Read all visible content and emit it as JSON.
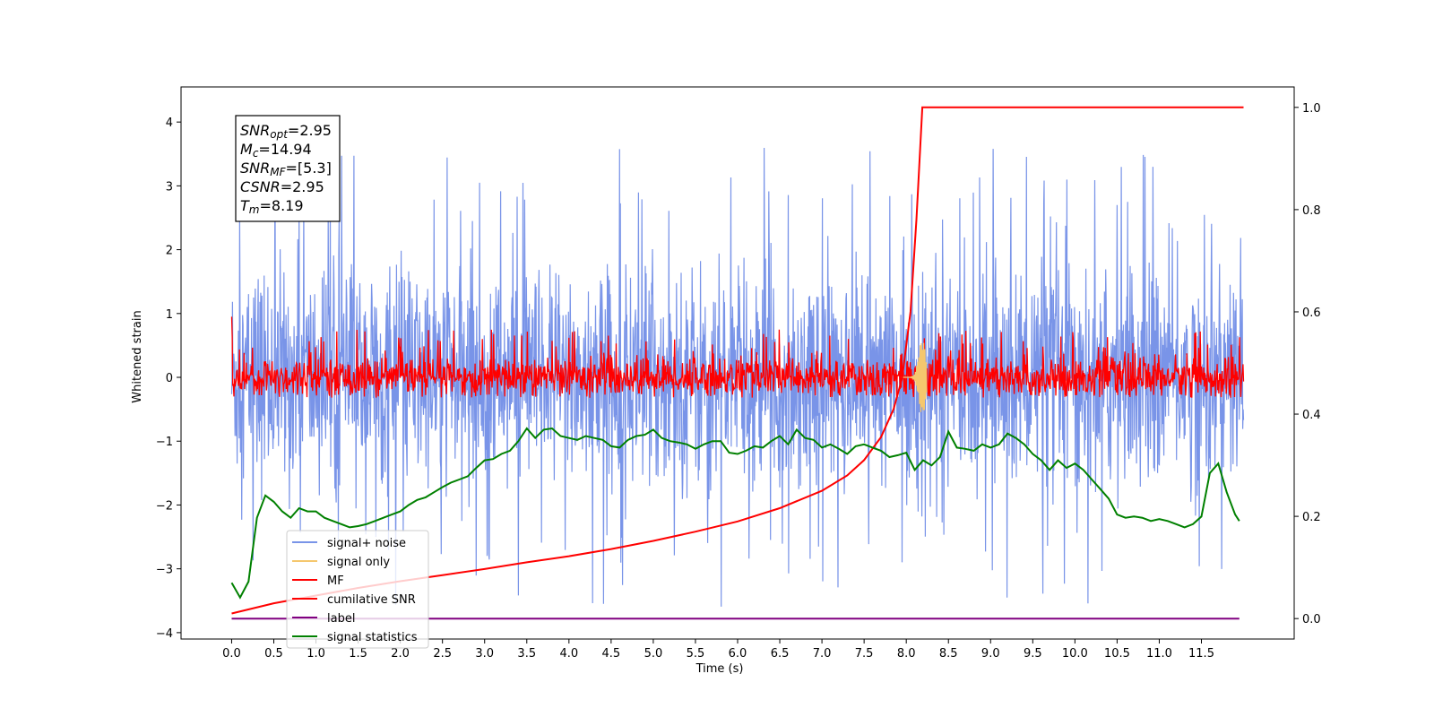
{
  "chart_data": {
    "type": "line",
    "xlabel": "Time (s)",
    "ylabel": "Whitened strain",
    "xlim": [
      -0.6,
      12.6
    ],
    "ylim": [
      -4.1,
      4.55
    ],
    "y2lim": [
      -0.04,
      1.04
    ],
    "x_ticks": [
      "0.0",
      "0.5",
      "1.0",
      "1.5",
      "2.0",
      "2.5",
      "3.0",
      "3.5",
      "4.0",
      "4.5",
      "5.0",
      "5.5",
      "6.0",
      "6.5",
      "7.0",
      "7.5",
      "8.0",
      "8.5",
      "9.0",
      "9.5",
      "10.0",
      "10.5",
      "11.0",
      "11.5"
    ],
    "y_ticks": [
      "4",
      "3",
      "2",
      "1",
      "0",
      "−1",
      "−2",
      "−3",
      "−4"
    ],
    "y2_ticks": [
      "1.0",
      "0.8",
      "0.6",
      "0.4",
      "0.2",
      "0.0"
    ],
    "series": [
      {
        "name": "signal+ noise",
        "color": "#7994e8",
        "axis": "left",
        "description": "dense noise band, approx. -2.4..2.4 with spikes to +/-3.7",
        "x_range": [
          0,
          12
        ],
        "noise_sigma": 1.0
      },
      {
        "name": "signal only",
        "color": "#f5c76e",
        "axis": "left",
        "peak_time": 8.19,
        "peak_amplitude": 0.6
      },
      {
        "name": "MF",
        "color": "#ff0000",
        "axis": "left",
        "description": "matched filter output band around 0, approx. -0.3..0.5",
        "x_range": [
          0,
          12
        ]
      },
      {
        "name": "cumilative SNR",
        "color": "#ff0000",
        "axis": "right",
        "x": [
          0,
          0.5,
          1.0,
          1.5,
          2.0,
          2.5,
          3.0,
          3.5,
          4.0,
          4.5,
          5.0,
          5.5,
          6.0,
          6.5,
          7.0,
          7.3,
          7.5,
          7.7,
          7.85,
          7.95,
          8.05,
          8.12,
          8.19,
          12.0
        ],
        "values": [
          0.01,
          0.03,
          0.045,
          0.06,
          0.073,
          0.085,
          0.097,
          0.11,
          0.122,
          0.136,
          0.152,
          0.17,
          0.19,
          0.216,
          0.25,
          0.28,
          0.31,
          0.355,
          0.41,
          0.47,
          0.6,
          0.78,
          1.0,
          1.0
        ]
      },
      {
        "name": "label",
        "color": "#800080",
        "axis": "right",
        "x": [
          0,
          11.95
        ],
        "values": [
          0.0,
          0.0
        ]
      },
      {
        "name": "signal statistics",
        "color": "#008000",
        "axis": "left",
        "x": [
          0.0,
          0.1,
          0.2,
          0.3,
          0.4,
          0.5,
          0.6,
          0.7,
          0.8,
          0.9,
          1.0,
          1.1,
          1.2,
          1.3,
          1.4,
          1.5,
          1.6,
          1.7,
          1.8,
          1.9,
          2.0,
          2.1,
          2.2,
          2.3,
          2.4,
          2.5,
          2.6,
          2.7,
          2.8,
          2.9,
          3.0,
          3.1,
          3.2,
          3.3,
          3.4,
          3.5,
          3.6,
          3.7,
          3.8,
          3.9,
          4.0,
          4.1,
          4.2,
          4.3,
          4.4,
          4.5,
          4.6,
          4.7,
          4.8,
          4.9,
          5.0,
          5.1,
          5.2,
          5.3,
          5.4,
          5.5,
          5.6,
          5.7,
          5.8,
          5.9,
          6.0,
          6.1,
          6.2,
          6.3,
          6.4,
          6.5,
          6.6,
          6.7,
          6.8,
          6.9,
          7.0,
          7.1,
          7.2,
          7.3,
          7.4,
          7.5,
          7.6,
          7.7,
          7.8,
          7.9,
          8.0,
          8.1,
          8.2,
          8.3,
          8.4,
          8.5,
          8.6,
          8.7,
          8.8,
          8.9,
          9.0,
          9.1,
          9.2,
          9.3,
          9.4,
          9.5,
          9.6,
          9.7,
          9.8,
          9.9,
          10.0,
          10.1,
          10.2,
          10.3,
          10.4,
          10.5,
          10.6,
          10.7,
          10.8,
          10.9,
          11.0,
          11.1,
          11.2,
          11.3,
          11.4,
          11.5,
          11.6,
          11.7,
          11.8,
          11.9,
          11.95
        ],
        "values": [
          -3.22,
          -3.45,
          -3.2,
          -2.2,
          -1.85,
          -1.95,
          -2.1,
          -2.2,
          -2.05,
          -2.1,
          -2.1,
          -2.2,
          -2.25,
          -2.3,
          -2.35,
          -2.33,
          -2.3,
          -2.25,
          -2.2,
          -2.15,
          -2.1,
          -2.0,
          -1.92,
          -1.88,
          -1.8,
          -1.72,
          -1.65,
          -1.6,
          -1.55,
          -1.42,
          -1.3,
          -1.28,
          -1.2,
          -1.15,
          -1.0,
          -0.8,
          -0.95,
          -0.82,
          -0.8,
          -0.92,
          -0.95,
          -0.98,
          -0.92,
          -0.95,
          -0.98,
          -1.08,
          -1.1,
          -0.98,
          -0.92,
          -0.9,
          -0.82,
          -0.95,
          -1.0,
          -1.02,
          -1.05,
          -1.12,
          -1.05,
          -1.0,
          -1.0,
          -1.18,
          -1.2,
          -1.15,
          -1.08,
          -1.1,
          -1.0,
          -0.92,
          -1.05,
          -0.82,
          -0.95,
          -0.98,
          -1.1,
          -1.05,
          -1.12,
          -1.2,
          -1.08,
          -1.05,
          -1.1,
          -1.15,
          -1.25,
          -1.22,
          -1.18,
          -1.45,
          -1.3,
          -1.38,
          -1.25,
          -0.85,
          -1.1,
          -1.12,
          -1.15,
          -1.05,
          -1.1,
          -1.05,
          -0.88,
          -0.95,
          -1.05,
          -1.2,
          -1.3,
          -1.45,
          -1.3,
          -1.42,
          -1.35,
          -1.45,
          -1.6,
          -1.75,
          -1.9,
          -2.15,
          -2.2,
          -2.18,
          -2.2,
          -2.25,
          -2.22,
          -2.25,
          -2.3,
          -2.35,
          -2.3,
          -2.18,
          -1.5,
          -1.35,
          -1.8,
          -2.15,
          -2.25
        ]
      }
    ],
    "legend": {
      "position": "lower-left",
      "entries": [
        {
          "label": "signal+ noise",
          "color": "#7994e8"
        },
        {
          "label": "signal only",
          "color": "#f5c76e"
        },
        {
          "label": "MF",
          "color": "#ff0000"
        },
        {
          "label": "cumilative SNR",
          "color": "#ff0000"
        },
        {
          "label": "label",
          "color": "#800080"
        },
        {
          "label": "signal statistics",
          "color": "#008000"
        }
      ]
    },
    "annotation": {
      "position": "top-left",
      "lines": [
        {
          "name": "SNR",
          "sub": "opt",
          "value": "=2.95"
        },
        {
          "name": "M",
          "sub": "c",
          "value": "=14.94"
        },
        {
          "name": "SNR",
          "sub": "MF",
          "value": "=[5.3]"
        },
        {
          "name": "CSNR",
          "sub": "",
          "value": "=2.95"
        },
        {
          "name": "T",
          "sub": "m",
          "value": "=8.19"
        }
      ]
    },
    "grid": false
  }
}
